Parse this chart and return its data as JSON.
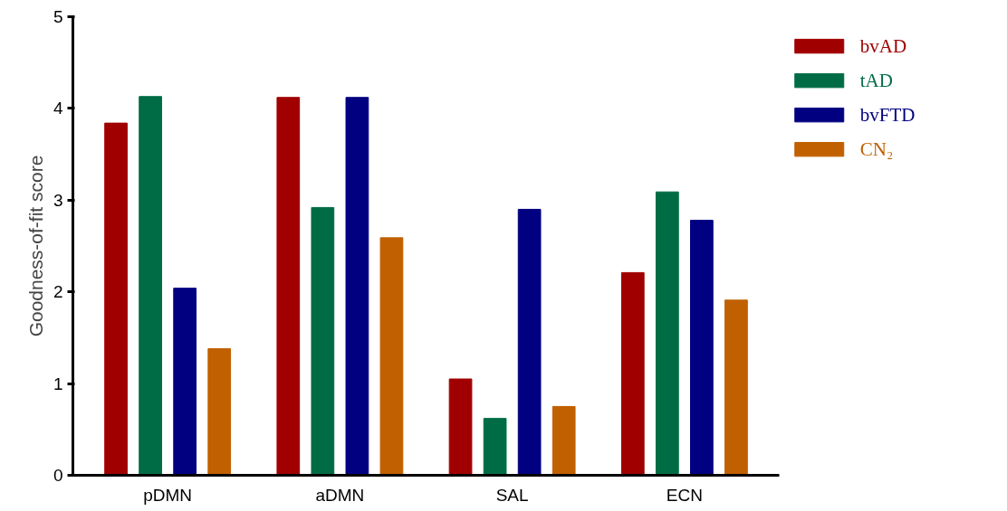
{
  "chart_data": {
    "type": "bar",
    "categories": [
      "pDMN",
      "aDMN",
      "SAL",
      "ECN"
    ],
    "ylabel": "Goodness-of-fit score",
    "ylim": [
      0,
      5
    ],
    "yticks": [
      0,
      1,
      2,
      3,
      4,
      5
    ],
    "grid": false,
    "legend": "top right",
    "series": [
      {
        "name": "bvAD",
        "color": "#a00000",
        "values": [
          3.84,
          4.12,
          1.05,
          2.21
        ]
      },
      {
        "name": "tAD",
        "color": "#006c45",
        "values": [
          4.13,
          2.92,
          0.62,
          3.09
        ]
      },
      {
        "name": "bvFTD",
        "color": "#000080",
        "values": [
          2.04,
          4.12,
          2.9,
          2.78
        ]
      },
      {
        "name": "CN₂",
        "color": "#c06000",
        "values": [
          1.38,
          2.59,
          0.75,
          1.91
        ]
      }
    ]
  }
}
